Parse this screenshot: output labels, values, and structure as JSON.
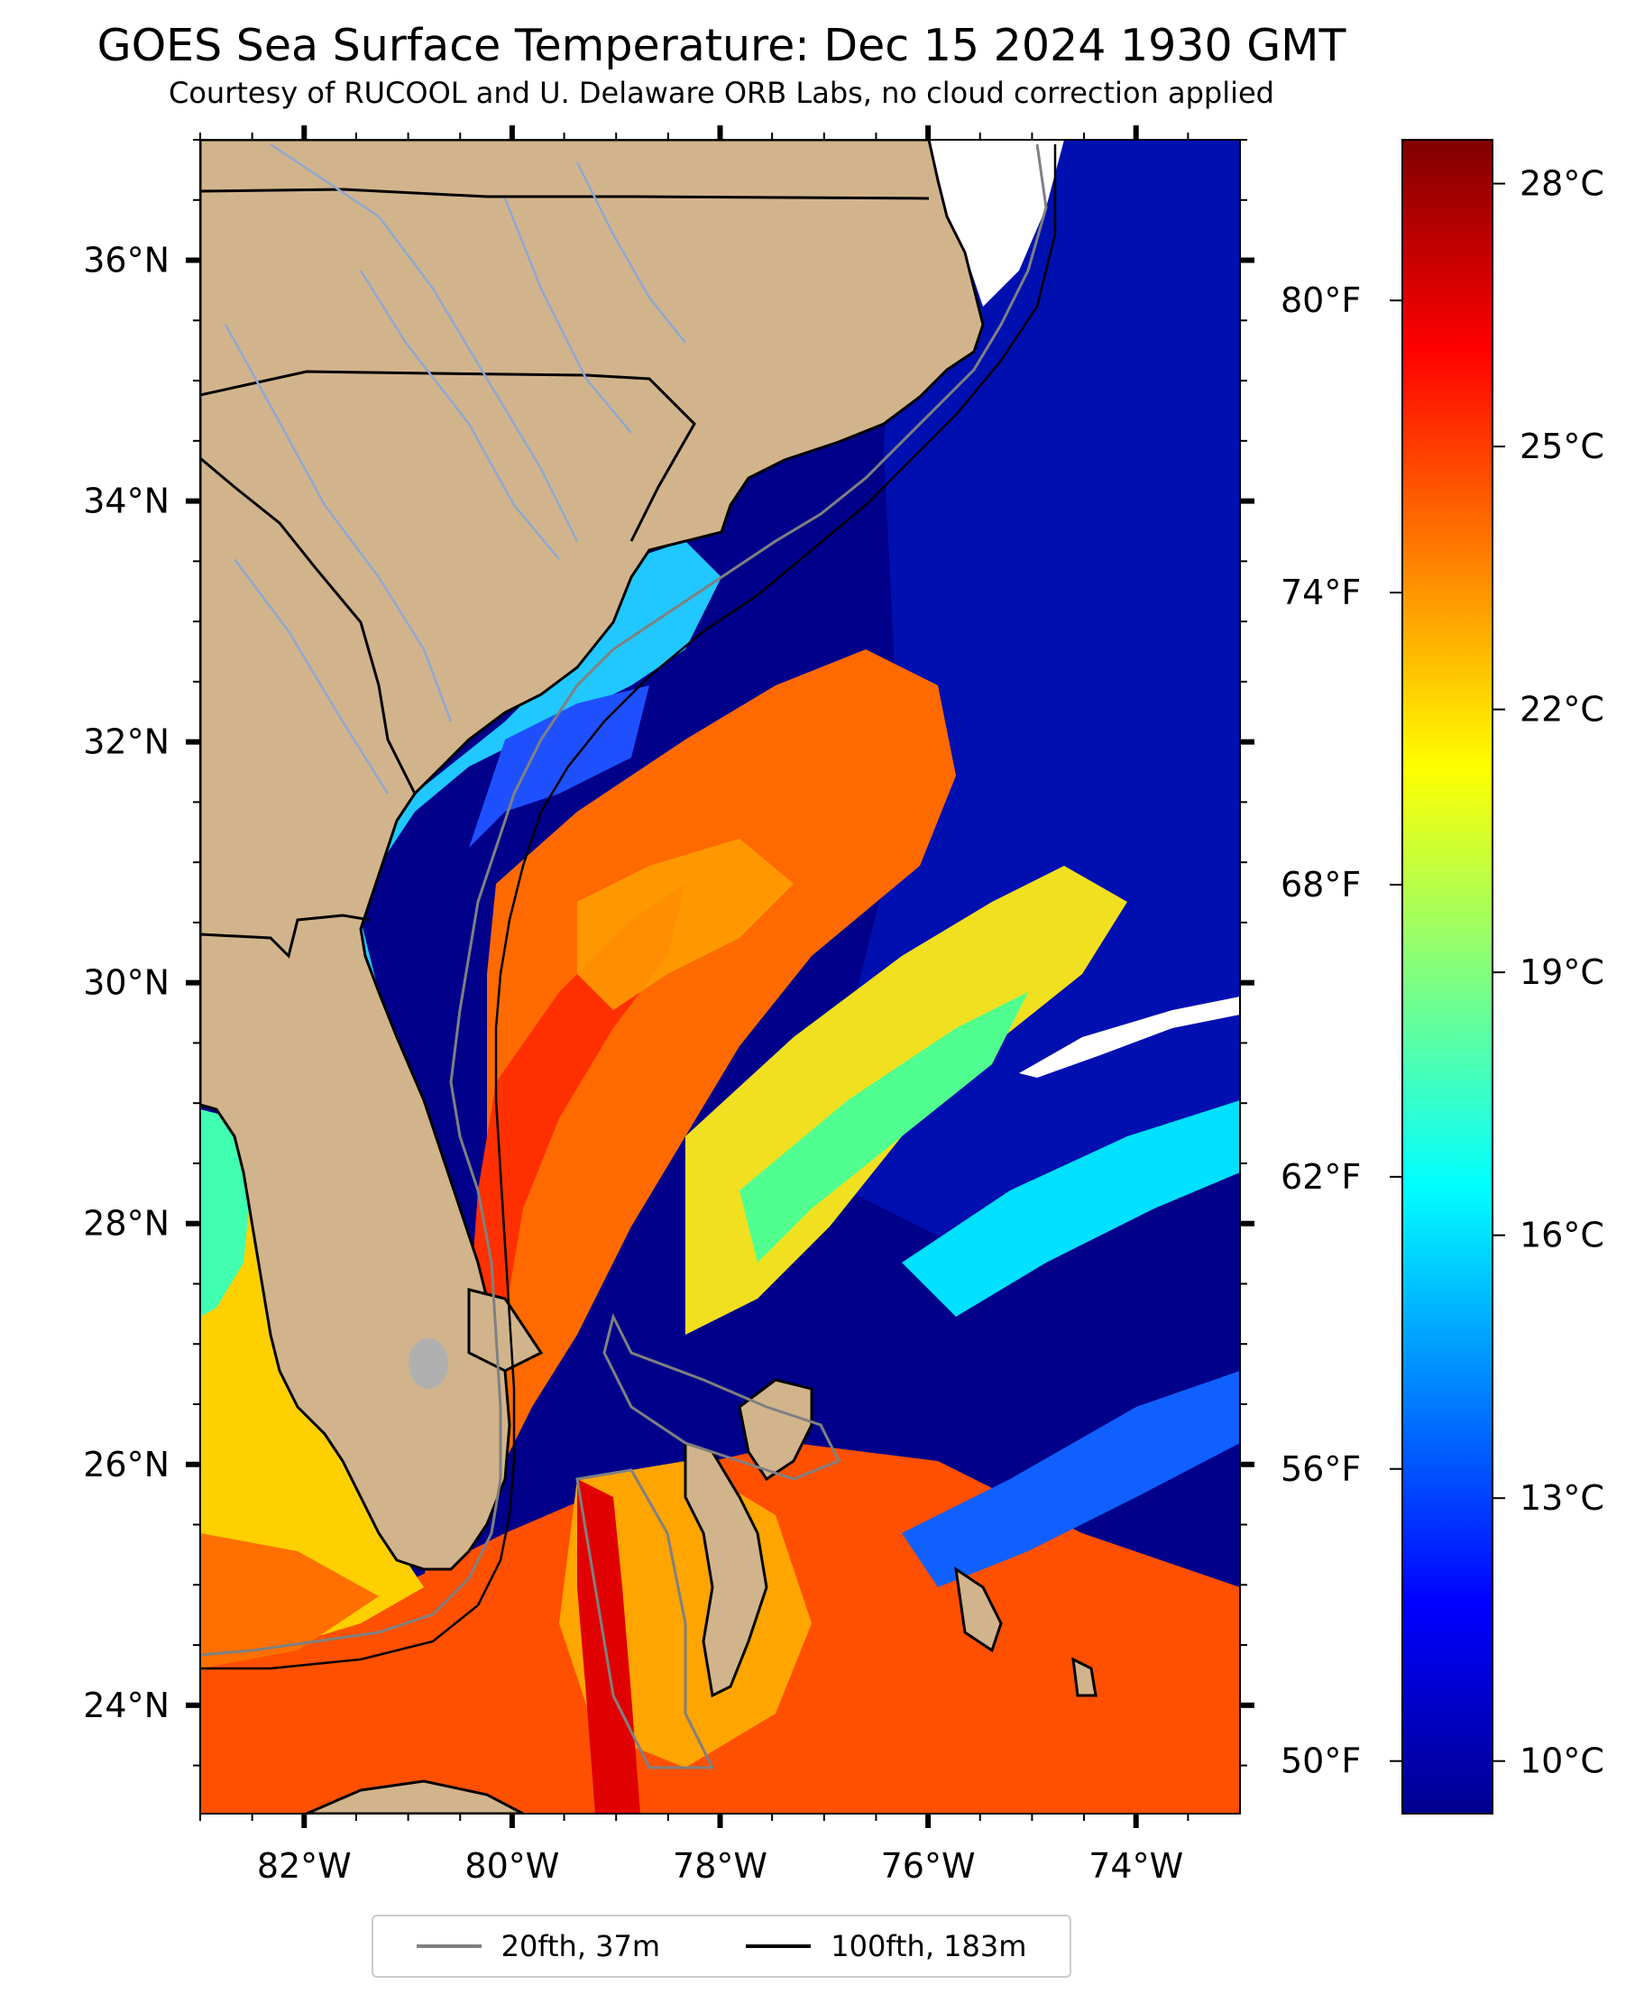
{
  "title": "GOES Sea Surface Temperature: Dec 15 2024 1930 GMT",
  "subtitle": "Courtesy of RUCOOL and U. Delaware ORB Labs, no cloud correction applied",
  "map": {
    "lat_range": [
      23.1,
      37.0
    ],
    "lon_range": [
      -83.0,
      -73.0
    ],
    "lat_labels": [
      {
        "lat": 36,
        "text": "36°N"
      },
      {
        "lat": 34,
        "text": "34°N"
      },
      {
        "lat": 32,
        "text": "32°N"
      },
      {
        "lat": 30,
        "text": "30°N"
      },
      {
        "lat": 28,
        "text": "28°N"
      },
      {
        "lat": 26,
        "text": "26°N"
      },
      {
        "lat": 24,
        "text": "24°N"
      }
    ],
    "lon_labels": [
      {
        "lon": -82,
        "text": "82°W"
      },
      {
        "lon": -80,
        "text": "80°W"
      },
      {
        "lon": -78,
        "text": "78°W"
      },
      {
        "lon": -76,
        "text": "76°W"
      },
      {
        "lon": -74,
        "text": "74°W"
      }
    ],
    "colors": {
      "land": "#d2b48c",
      "cold_water": "#00008b",
      "warm_water": "#ff4500",
      "cloud_mask": "#ffffff",
      "rivers": "#8fa8d0",
      "isobath_20fth": "#808080",
      "isobath_100fth": "#000000"
    }
  },
  "colorbar": {
    "celsius_range": [
      9.4,
      28.5
    ],
    "celsius_labels": [
      {
        "value": 28,
        "text": "28°C"
      },
      {
        "value": 25,
        "text": "25°C"
      },
      {
        "value": 22,
        "text": "22°C"
      },
      {
        "value": 19,
        "text": "19°C"
      },
      {
        "value": 16,
        "text": "16°C"
      },
      {
        "value": 13,
        "text": "13°C"
      },
      {
        "value": 10,
        "text": "10°C"
      }
    ],
    "fahrenheit_labels": [
      {
        "value": 80,
        "text": "80°F"
      },
      {
        "value": 74,
        "text": "74°F"
      },
      {
        "value": 68,
        "text": "68°F"
      },
      {
        "value": 62,
        "text": "62°F"
      },
      {
        "value": 56,
        "text": "56°F"
      },
      {
        "value": 50,
        "text": "50°F"
      }
    ],
    "colormap": [
      "#00008f",
      "#0000ff",
      "#0080ff",
      "#00ffff",
      "#80ff80",
      "#ffff00",
      "#ff8000",
      "#ff0000",
      "#800000"
    ]
  },
  "legend": {
    "items": [
      {
        "label": "20fth, 37m",
        "color": "#808080"
      },
      {
        "label": "100fth, 183m",
        "color": "#000000"
      }
    ]
  }
}
